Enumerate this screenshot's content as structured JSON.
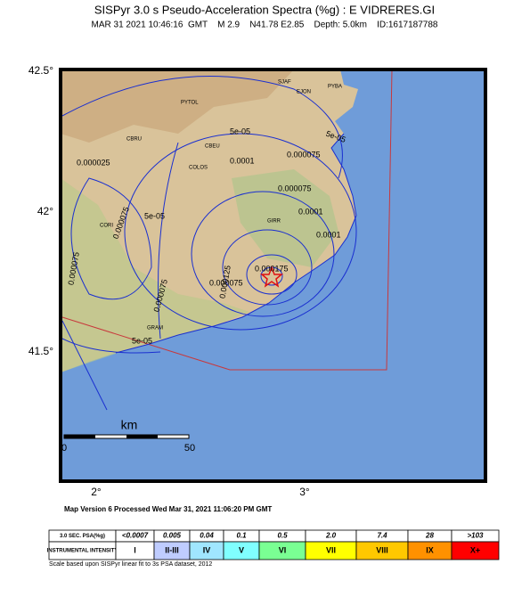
{
  "header": {
    "title": "SISPyr 3.0 s Pseudo-Acceleration Spectra (%g) : E VIDRERES.GI",
    "subtitle": "MAR 31 2021 10:46:16  GMT    M 2.9    N41.78 E2.85    Depth: 5.0km    ID:1617187788"
  },
  "map": {
    "lat_labels": [
      "42.5°",
      "42°",
      "41.5°"
    ],
    "lon_labels": [
      "2°",
      "3°"
    ],
    "places": [
      "PYTOL",
      "SJAF",
      "EJON",
      "PYBA",
      "CBRU",
      "CBEU",
      "COLOS",
      "CORI",
      "GIRR",
      "GRAM"
    ],
    "contour_labels": [
      "5e-05",
      "5e-05",
      "0.0001",
      "0.000025",
      "0.000075",
      "0.000075",
      "5e-05",
      "0.000075",
      "0.0001",
      "0.000175",
      "0.000075",
      "0.000075",
      "0.000125",
      "5e-05",
      "0.000075",
      "0.0001"
    ],
    "scale": {
      "unit": "km",
      "start": "0",
      "end": "50"
    }
  },
  "footer": "Map Version 6 Processed Wed Mar 31, 2021 11:06:20 PM GMT",
  "legend": {
    "rows": [
      [
        "3.0 SEC. PSA(%g)",
        "<0.0007",
        "0.005",
        "0.04",
        "0.1",
        "0.5",
        "2.0",
        "7.4",
        "28",
        ">103"
      ],
      [
        "INSTRUMENTAL INTENSITY",
        "I",
        "II-III",
        "IV",
        "V",
        "VI",
        "VII",
        "VIII",
        "IX",
        "X+"
      ]
    ],
    "note": "Scale based upon SISPyr linear fit to 3s PSA dataset, 2012"
  }
}
